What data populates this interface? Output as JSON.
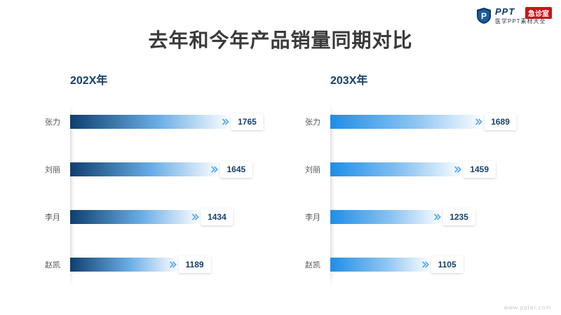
{
  "title": "去年和今年产品销量同期对比",
  "logo": {
    "brand": "PPT",
    "badge": "急诊室",
    "subtitle": "医学PPT素材大全",
    "icon": "shield-p-icon"
  },
  "footer_url": "www.ppter.com",
  "colors": {
    "panel1_bar_start": "#0f3f6e",
    "panel2_bar_start": "#1e8ee8",
    "arrow": "#5aa9ea",
    "value_text": "#15406e",
    "label_text": "#555555"
  },
  "chart_data": [
    {
      "type": "bar",
      "orientation": "horizontal",
      "title": "202X年",
      "categories": [
        "张力",
        "刘丽",
        "李月",
        "赵凯"
      ],
      "values": [
        1765,
        1645,
        1434,
        1189
      ]
    },
    {
      "type": "bar",
      "orientation": "horizontal",
      "title": "203X年",
      "categories": [
        "张力",
        "刘丽",
        "李月",
        "赵凯"
      ],
      "values": [
        1689,
        1459,
        1235,
        1105
      ]
    }
  ]
}
